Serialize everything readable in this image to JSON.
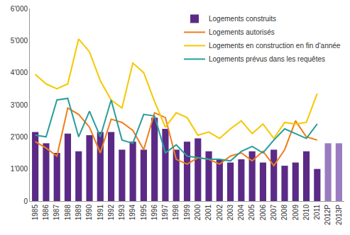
{
  "chart_data": {
    "type": "bar",
    "categories": [
      "1985",
      "1986",
      "1987",
      "1988",
      "1989",
      "1990",
      "1991",
      "1992",
      "1993",
      "1994",
      "1995",
      "1996",
      "1997",
      "1998",
      "1999",
      "2000",
      "2001",
      "2002",
      "2003",
      "2004",
      "2005",
      "2006",
      "2007",
      "2008",
      "2009",
      "2010",
      "2011",
      "2012P",
      "2013P"
    ],
    "series": [
      {
        "name": "Logements construits",
        "type": "bar",
        "color": "#5b2a86",
        "colors": [
          "#5b2a86",
          "#5b2a86",
          "#5b2a86",
          "#5b2a86",
          "#5b2a86",
          "#5b2a86",
          "#5b2a86",
          "#5b2a86",
          "#5b2a86",
          "#5b2a86",
          "#5b2a86",
          "#5b2a86",
          "#5b2a86",
          "#5b2a86",
          "#5b2a86",
          "#5b2a86",
          "#5b2a86",
          "#5b2a86",
          "#5b2a86",
          "#5b2a86",
          "#5b2a86",
          "#5b2a86",
          "#5b2a86",
          "#5b2a86",
          "#5b2a86",
          "#5b2a86",
          "#5b2a86",
          "#9b7bbf",
          "#9b7bbf"
        ],
        "values": [
          2150,
          1800,
          1500,
          2100,
          1550,
          2050,
          2150,
          2150,
          1600,
          1850,
          1600,
          2600,
          2250,
          1600,
          1850,
          1950,
          1550,
          1300,
          1200,
          1300,
          1550,
          1200,
          1600,
          1100,
          1200,
          1550,
          1000,
          1800,
          1800
        ]
      },
      {
        "name": "Logements autorisés",
        "type": "line",
        "color": "#f07d1a",
        "values": [
          1850,
          1650,
          1400,
          2900,
          2700,
          2300,
          1500,
          2550,
          2450,
          2200,
          1600,
          2750,
          2600,
          1300,
          1150,
          1350,
          1300,
          1150,
          1400,
          1500,
          1250,
          1550,
          1100,
          1600,
          2500,
          2000,
          1900,
          null,
          null
        ]
      },
      {
        "name": "Logements en construction en fin d'année",
        "type": "line",
        "color": "#f5c800",
        "values": [
          3950,
          3650,
          3500,
          3650,
          5050,
          4650,
          3750,
          3150,
          2900,
          4300,
          4000,
          3100,
          2300,
          2750,
          2600,
          2050,
          2150,
          1950,
          2250,
          2500,
          2100,
          2400,
          1950,
          2450,
          2400,
          2450,
          3350,
          null,
          null
        ]
      },
      {
        "name": "Logements prévus dans les requêtes",
        "type": "line",
        "color": "#2a9d9a",
        "values": [
          2050,
          2000,
          3150,
          3200,
          2000,
          2800,
          2000,
          3150,
          1900,
          1800,
          2700,
          2650,
          1500,
          1750,
          1400,
          1350,
          1300,
          1300,
          1250,
          1550,
          1700,
          1500,
          1900,
          2250,
          2100,
          1950,
          2400,
          null,
          null
        ]
      }
    ],
    "ylim": [
      0,
      6000
    ],
    "yticks": [
      0,
      {
        "value": 1000,
        "label": "1'000"
      },
      {
        "value": 2000,
        "label": "2'000"
      },
      {
        "value": 3000,
        "label": "3'000"
      },
      {
        "value": 4000,
        "label": "4'000"
      },
      {
        "value": 5000,
        "label": "5'000"
      },
      {
        "value": 6000,
        "label": "6'000"
      }
    ],
    "grid": false,
    "legend": "top right"
  }
}
